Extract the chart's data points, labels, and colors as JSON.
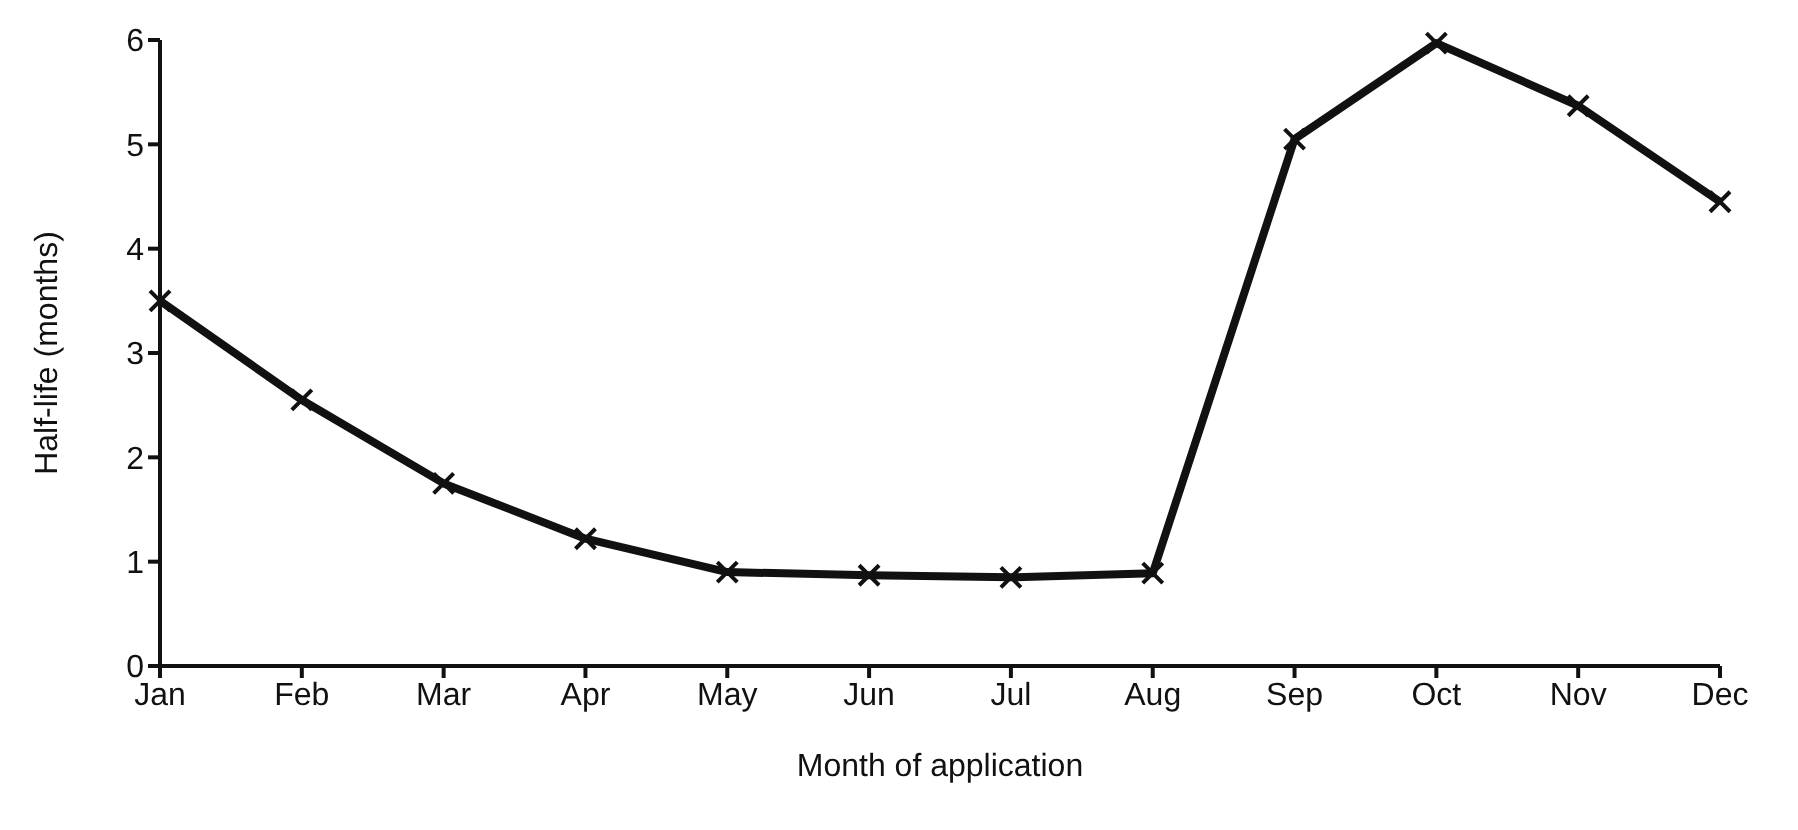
{
  "chart_data": {
    "type": "line",
    "xlabel": "Month of application",
    "ylabel": "Half-life (months)",
    "categories": [
      "Jan",
      "Feb",
      "Mar",
      "Apr",
      "May",
      "Jun",
      "Jul",
      "Aug",
      "Sep",
      "Oct",
      "Nov",
      "Dec"
    ],
    "series": [
      {
        "color": "#111111",
        "values": [
          3.5,
          2.55,
          1.75,
          1.22,
          0.9,
          0.87,
          0.85,
          0.89,
          5.05,
          5.97,
          5.37,
          4.45
        ]
      }
    ],
    "ylim": [
      0,
      6
    ],
    "yticks": [
      0,
      1,
      2,
      3,
      4,
      5,
      6
    ],
    "grid": false,
    "legend": false,
    "marker": "cross",
    "line_style": "solid"
  }
}
